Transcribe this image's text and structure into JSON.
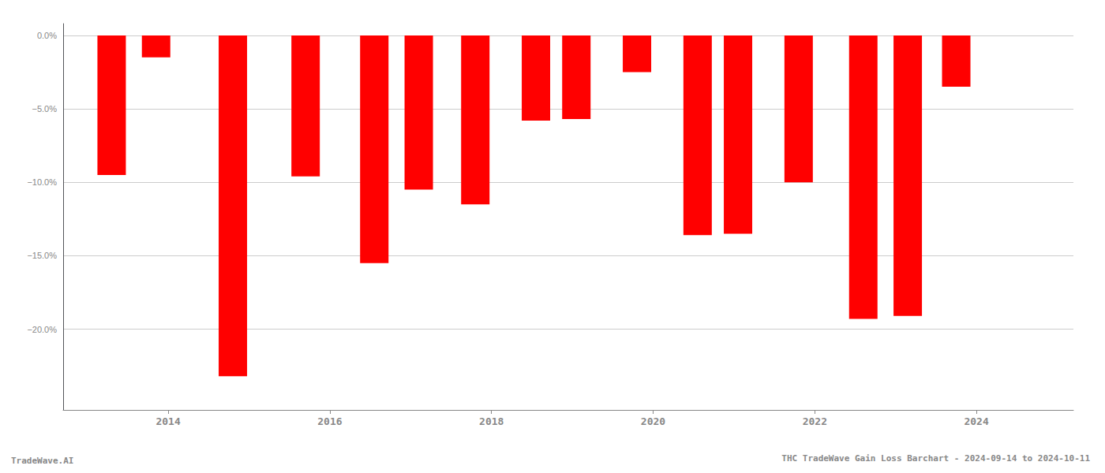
{
  "chart_data": {
    "type": "bar",
    "title": "THC TradeWave Gain Loss Barchart - 2024-09-14 to 2024-10-11",
    "annotations": [
      "TradeWave.AI"
    ],
    "x": [
      2013.3,
      2013.85,
      2014.8,
      2015.7,
      2016.55,
      2017.1,
      2017.8,
      2018.55,
      2019.05,
      2019.8,
      2020.55,
      2021.05,
      2021.8,
      2022.6,
      2023.15,
      2023.75
    ],
    "values": [
      -9.5,
      -1.5,
      -23.2,
      -9.6,
      -15.5,
      -10.5,
      -11.5,
      -5.8,
      -5.7,
      -2.5,
      -13.6,
      -13.5,
      -10.0,
      -19.3,
      -19.1,
      -3.5
    ],
    "color": "#ff0000",
    "xlim": [
      2012.7,
      2025.2
    ],
    "xticks": [
      2014,
      2016,
      2018,
      2020,
      2022,
      2024
    ],
    "ylim": [
      -25.5,
      0.8
    ],
    "yticks": [
      {
        "value": 0.0,
        "label": "0.0%"
      },
      {
        "value": -5.0,
        "label": "−5.0%"
      },
      {
        "value": -10.0,
        "label": "−10.0%"
      },
      {
        "value": -15.0,
        "label": "−15.0%"
      },
      {
        "value": -20.0,
        "label": "−20.0%"
      }
    ],
    "grid": true
  }
}
